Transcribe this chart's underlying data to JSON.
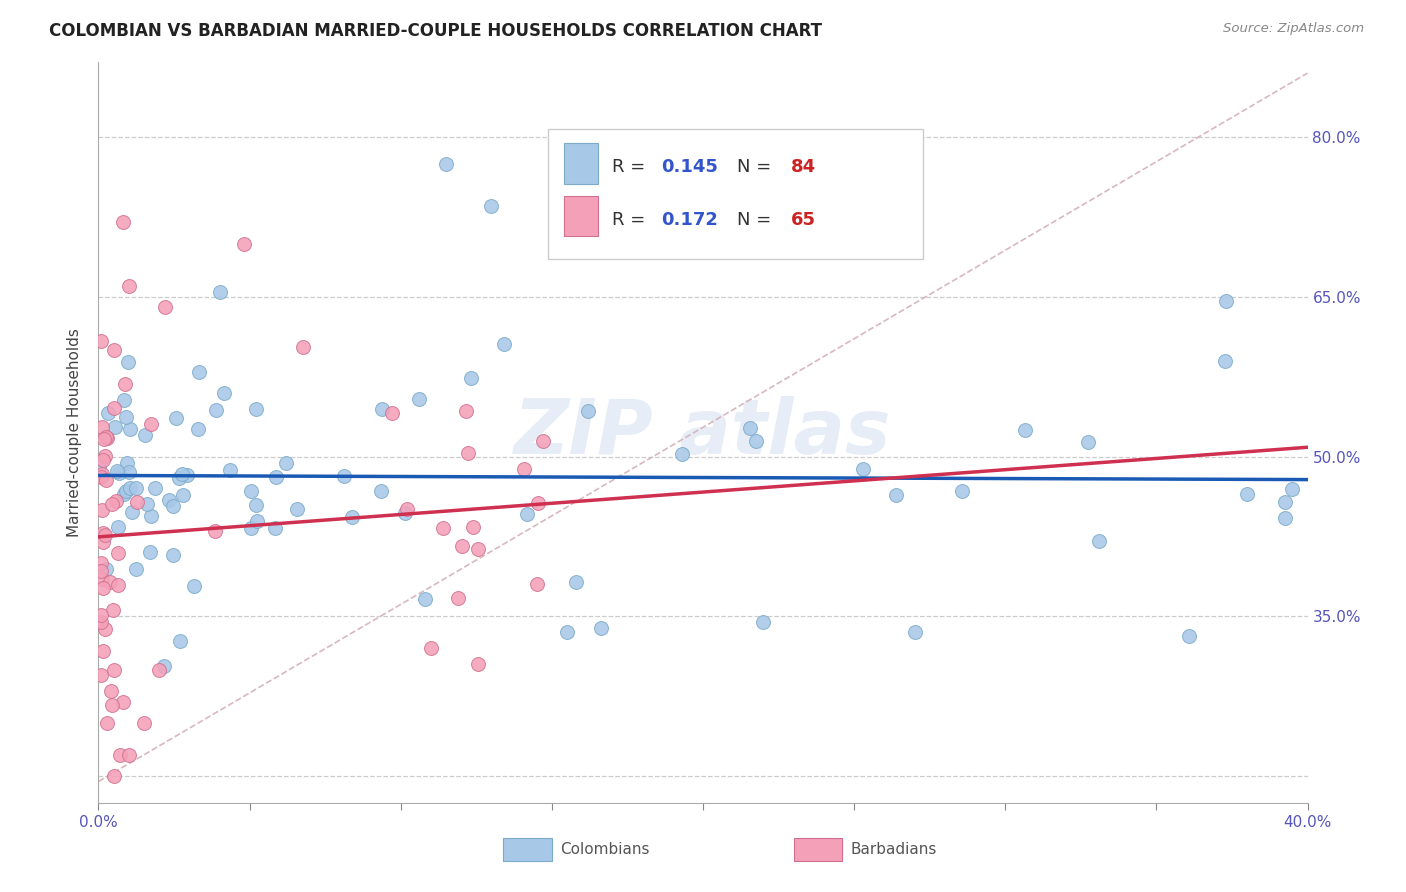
{
  "title": "COLOMBIAN VS BARBADIAN MARRIED-COUPLE HOUSEHOLDS CORRELATION CHART",
  "source": "Source: ZipAtlas.com",
  "ylabel": "Married-couple Households",
  "watermark": "ZIP atlas",
  "colombians_R": 0.145,
  "colombians_N": 84,
  "barbadians_R": 0.172,
  "barbadians_N": 65,
  "colombian_color": "#a8c8e8",
  "barbadian_color": "#f4a0b8",
  "colombian_edge_color": "#7aaac8",
  "barbadian_edge_color": "#d07090",
  "colombian_line_color": "#1a5ab4",
  "barbadian_line_color": "#d03050",
  "ref_line_color": "#d4b0b8",
  "grid_color": "#cccccc",
  "xlim": [
    0.0,
    0.4
  ],
  "ylim": [
    0.175,
    0.87
  ],
  "xtick_positions": [
    0.0,
    0.05,
    0.1,
    0.15,
    0.2,
    0.25,
    0.3,
    0.35,
    0.4
  ],
  "ytick_positions": [
    0.2,
    0.35,
    0.5,
    0.65,
    0.8
  ],
  "ytick_right": [
    0.35,
    0.5,
    0.65,
    0.8
  ],
  "marker_size": 100,
  "title_fontsize": 12,
  "axis_fontsize": 11,
  "legend_fontsize": 13
}
